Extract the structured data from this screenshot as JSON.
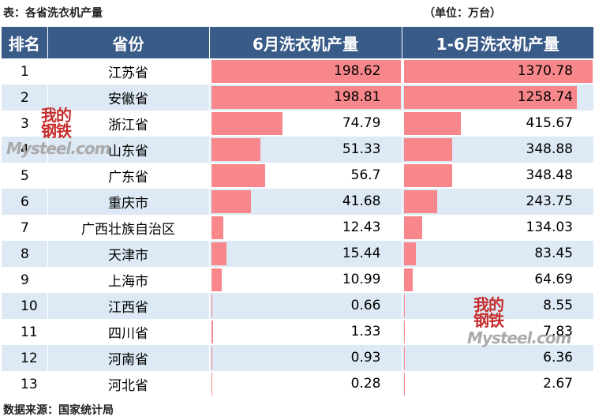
{
  "header": {
    "title": "表：各省洗衣机产量",
    "unit": "（单位：万台）"
  },
  "footer": {
    "source": "数据来源：国家统计局"
  },
  "chart_data": {
    "type": "table",
    "columns": [
      "排名",
      "省份",
      "6月洗衣机产量",
      "1-6月洗衣机产量"
    ],
    "rows": [
      {
        "rank": "1",
        "province": "江苏省",
        "jun": 198.62,
        "jun_label": "198.62",
        "h1": 1370.78,
        "h1_label": "1370.78"
      },
      {
        "rank": "2",
        "province": "安徽省",
        "jun": 198.81,
        "jun_label": "198.81",
        "h1": 1258.74,
        "h1_label": "1258.74"
      },
      {
        "rank": "3",
        "province": "浙江省",
        "jun": 74.79,
        "jun_label": "74.79",
        "h1": 415.67,
        "h1_label": "415.67"
      },
      {
        "rank": "4",
        "province": "山东省",
        "jun": 51.33,
        "jun_label": "51.33",
        "h1": 348.88,
        "h1_label": "348.88"
      },
      {
        "rank": "5",
        "province": "广东省",
        "jun": 56.7,
        "jun_label": "56.7",
        "h1": 348.48,
        "h1_label": "348.48"
      },
      {
        "rank": "6",
        "province": "重庆市",
        "jun": 41.68,
        "jun_label": "41.68",
        "h1": 243.75,
        "h1_label": "243.75"
      },
      {
        "rank": "7",
        "province": "广西壮族自治区",
        "jun": 12.43,
        "jun_label": "12.43",
        "h1": 134.03,
        "h1_label": "134.03"
      },
      {
        "rank": "8",
        "province": "天津市",
        "jun": 15.44,
        "jun_label": "15.44",
        "h1": 83.45,
        "h1_label": "83.45"
      },
      {
        "rank": "9",
        "province": "上海市",
        "jun": 10.99,
        "jun_label": "10.99",
        "h1": 64.69,
        "h1_label": "64.69"
      },
      {
        "rank": "10",
        "province": "江西省",
        "jun": 0.66,
        "jun_label": "0.66",
        "h1": 8.55,
        "h1_label": "8.55"
      },
      {
        "rank": "11",
        "province": "四川省",
        "jun": 1.33,
        "jun_label": "1.33",
        "h1": 7.83,
        "h1_label": "7.83"
      },
      {
        "rank": "12",
        "province": "河南省",
        "jun": 0.93,
        "jun_label": "0.93",
        "h1": 6.36,
        "h1_label": "6.36"
      },
      {
        "rank": "13",
        "province": "河北省",
        "jun": 0.28,
        "jun_label": "0.28",
        "h1": 2.67,
        "h1_label": "2.67"
      }
    ],
    "bar_color": "#f8878b",
    "header_color": "#395b88",
    "stripe_color": "#dde9f4"
  },
  "watermarks": [
    {
      "cn": "我的",
      "cn2": "钢铁",
      "en": "Mysteel.com"
    },
    {
      "cn": "我的",
      "cn2": "钢铁",
      "en": "Mysteel.com"
    }
  ]
}
